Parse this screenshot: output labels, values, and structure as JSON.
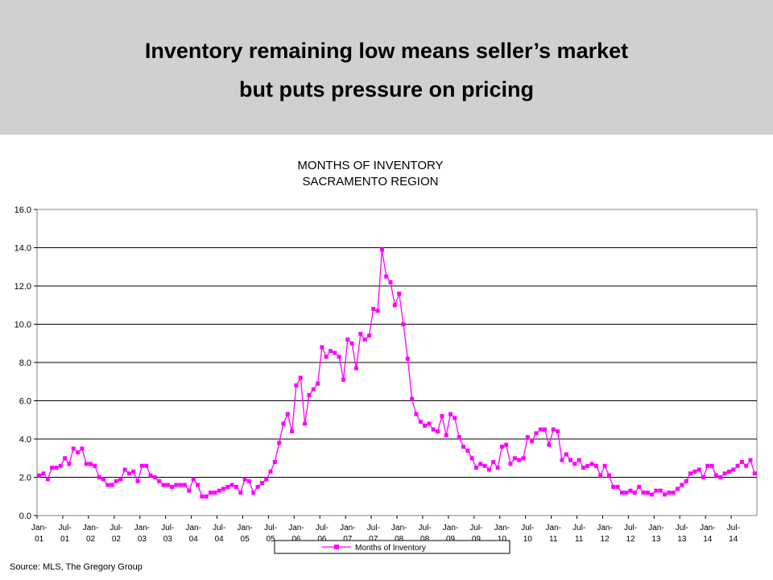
{
  "header": {
    "line1": "Inventory remaining low means seller’s market",
    "line2": "but puts pressure on pricing"
  },
  "source": "Source: MLS, The Gregory Group",
  "chart_data": {
    "type": "line",
    "title": "MONTHS OF INVENTORY",
    "subtitle": "SACRAMENTO REGION",
    "xlabel": "",
    "ylabel": "",
    "ylim": [
      0,
      16
    ],
    "yticks": [
      "0.0",
      "2.0",
      "4.0",
      "6.0",
      "8.0",
      "10.0",
      "12.0",
      "14.0",
      "16.0"
    ],
    "grid": "horizontal",
    "legend": "bottom-center",
    "color": "#ff00ff",
    "x_start": "Jan-01",
    "x_ticks": [
      {
        "top": "Jan-",
        "bottom": "01"
      },
      {
        "top": "Jul-",
        "bottom": "01"
      },
      {
        "top": "Jan-",
        "bottom": "02"
      },
      {
        "top": "Jul-",
        "bottom": "02"
      },
      {
        "top": "Jan-",
        "bottom": "03"
      },
      {
        "top": "Jul-",
        "bottom": "03"
      },
      {
        "top": "Jan-",
        "bottom": "04"
      },
      {
        "top": "Jul-",
        "bottom": "04"
      },
      {
        "top": "Jan-",
        "bottom": "05"
      },
      {
        "top": "Jul-",
        "bottom": "05"
      },
      {
        "top": "Jan-",
        "bottom": "06"
      },
      {
        "top": "Jul-",
        "bottom": "06"
      },
      {
        "top": "Jan-",
        "bottom": "07"
      },
      {
        "top": "Jul-",
        "bottom": "07"
      },
      {
        "top": "Jan-",
        "bottom": "08"
      },
      {
        "top": "Jul-",
        "bottom": "08"
      },
      {
        "top": "Jan-",
        "bottom": "09"
      },
      {
        "top": "Jul-",
        "bottom": "09"
      },
      {
        "top": "Jan-",
        "bottom": "10"
      },
      {
        "top": "Jul-",
        "bottom": "10"
      },
      {
        "top": "Jan-",
        "bottom": "11"
      },
      {
        "top": "Jul-",
        "bottom": "11"
      },
      {
        "top": "Jan-",
        "bottom": "12"
      },
      {
        "top": "Jul-",
        "bottom": "12"
      },
      {
        "top": "Jan-",
        "bottom": "13"
      },
      {
        "top": "Jul-",
        "bottom": "13"
      },
      {
        "top": "Jan-",
        "bottom": "14"
      },
      {
        "top": "Jul-",
        "bottom": "14"
      }
    ],
    "series": [
      {
        "name": "Months of Inventory",
        "values": [
          2.1,
          2.2,
          1.9,
          2.5,
          2.5,
          2.6,
          3.0,
          2.7,
          3.5,
          3.3,
          3.5,
          2.7,
          2.7,
          2.6,
          2.0,
          1.9,
          1.6,
          1.6,
          1.8,
          1.9,
          2.4,
          2.2,
          2.3,
          1.8,
          2.6,
          2.6,
          2.1,
          2.0,
          1.8,
          1.6,
          1.6,
          1.5,
          1.6,
          1.6,
          1.6,
          1.3,
          1.9,
          1.6,
          1.0,
          1.0,
          1.2,
          1.2,
          1.3,
          1.4,
          1.5,
          1.6,
          1.5,
          1.2,
          1.9,
          1.8,
          1.2,
          1.5,
          1.7,
          1.9,
          2.3,
          2.8,
          3.8,
          4.8,
          5.3,
          4.4,
          6.8,
          7.2,
          4.8,
          6.3,
          6.6,
          6.9,
          8.8,
          8.3,
          8.6,
          8.5,
          8.3,
          7.1,
          9.2,
          9.0,
          7.7,
          9.5,
          9.2,
          9.4,
          10.8,
          10.7,
          13.9,
          12.5,
          12.2,
          11.0,
          11.6,
          10.0,
          8.2,
          6.1,
          5.3,
          4.9,
          4.7,
          4.8,
          4.5,
          4.4,
          5.2,
          4.2,
          5.3,
          5.1,
          4.1,
          3.6,
          3.4,
          3.0,
          2.5,
          2.7,
          2.6,
          2.4,
          2.8,
          2.5,
          3.6,
          3.7,
          2.7,
          3.0,
          2.9,
          3.0,
          4.1,
          3.9,
          4.3,
          4.5,
          4.5,
          3.7,
          4.5,
          4.4,
          2.9,
          3.2,
          2.9,
          2.7,
          2.9,
          2.5,
          2.6,
          2.7,
          2.6,
          2.1,
          2.6,
          2.1,
          1.5,
          1.5,
          1.2,
          1.2,
          1.3,
          1.2,
          1.5,
          1.2,
          1.2,
          1.1,
          1.3,
          1.3,
          1.1,
          1.2,
          1.2,
          1.4,
          1.6,
          1.8,
          2.2,
          2.3,
          2.4,
          2.0,
          2.6,
          2.6,
          2.1,
          2.0,
          2.2,
          2.3,
          2.4,
          2.6,
          2.8,
          2.6,
          2.9,
          2.2
        ]
      }
    ]
  }
}
